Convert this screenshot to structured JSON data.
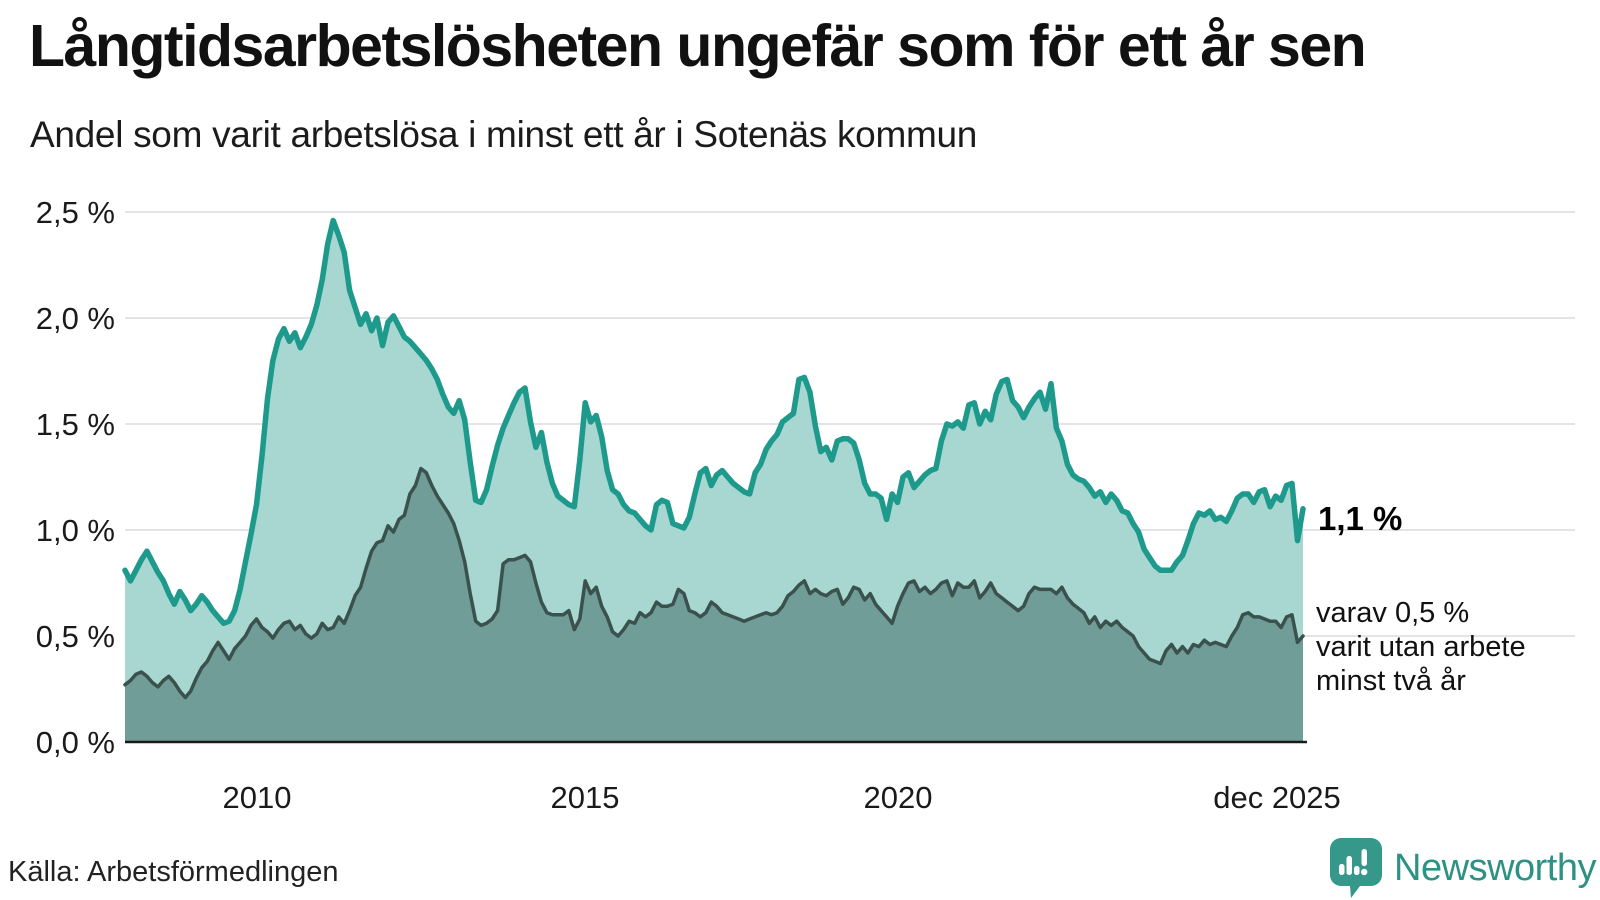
{
  "header": {
    "title": "Långtidsarbetslösheten ungefär som för ett år sen",
    "subtitle": "Andel som varit arbetslösa i minst ett år i Sotenäs kommun"
  },
  "chart_data": {
    "type": "area",
    "x_start": "2008-01",
    "x_end": "2025-12",
    "x_tick_labels": [
      "2010",
      "2015",
      "2020",
      "dec 2025"
    ],
    "y_tick_labels": [
      "2,5 %",
      "2,0 %",
      "1,5 %",
      "1,0 %",
      "0,5 %",
      "0,0 %"
    ],
    "ylim": [
      0,
      2.5
    ],
    "grid": "on",
    "legend_position": "none",
    "colors": {
      "grid": "#e4e4e8",
      "axis": "#1a1a1a"
    },
    "series": [
      {
        "name": "arbetslösa minst ett år",
        "line_color": "#1e9a8c",
        "fill_color": "#a7d7d0",
        "latest_value": "1,1 %",
        "values": [
          0.81,
          0.76,
          0.81,
          0.86,
          0.9,
          0.85,
          0.8,
          0.76,
          0.7,
          0.65,
          0.71,
          0.67,
          0.62,
          0.65,
          0.69,
          0.66,
          0.62,
          0.59,
          0.56,
          0.57,
          0.62,
          0.72,
          0.85,
          0.98,
          1.12,
          1.35,
          1.62,
          1.8,
          1.9,
          1.95,
          1.89,
          1.93,
          1.86,
          1.91,
          1.97,
          2.06,
          2.18,
          2.35,
          2.46,
          2.39,
          2.31,
          2.13,
          2.05,
          1.97,
          2.02,
          1.94,
          2.0,
          1.87,
          1.98,
          2.01,
          1.96,
          1.91,
          1.89,
          1.86,
          1.83,
          1.8,
          1.76,
          1.71,
          1.64,
          1.58,
          1.55,
          1.61,
          1.52,
          1.32,
          1.14,
          1.13,
          1.19,
          1.3,
          1.4,
          1.48,
          1.54,
          1.6,
          1.65,
          1.67,
          1.51,
          1.39,
          1.46,
          1.32,
          1.22,
          1.16,
          1.14,
          1.12,
          1.11,
          1.33,
          1.6,
          1.51,
          1.54,
          1.44,
          1.28,
          1.19,
          1.17,
          1.12,
          1.09,
          1.08,
          1.05,
          1.02,
          1.0,
          1.12,
          1.14,
          1.13,
          1.03,
          1.02,
          1.01,
          1.06,
          1.17,
          1.27,
          1.29,
          1.21,
          1.26,
          1.28,
          1.25,
          1.22,
          1.2,
          1.18,
          1.17,
          1.27,
          1.31,
          1.38,
          1.42,
          1.45,
          1.51,
          1.53,
          1.55,
          1.71,
          1.72,
          1.65,
          1.49,
          1.37,
          1.39,
          1.33,
          1.42,
          1.43,
          1.43,
          1.41,
          1.33,
          1.22,
          1.17,
          1.17,
          1.15,
          1.05,
          1.17,
          1.13,
          1.25,
          1.27,
          1.2,
          1.23,
          1.26,
          1.28,
          1.29,
          1.42,
          1.5,
          1.49,
          1.51,
          1.48,
          1.59,
          1.6,
          1.5,
          1.56,
          1.52,
          1.64,
          1.7,
          1.71,
          1.61,
          1.58,
          1.53,
          1.58,
          1.62,
          1.65,
          1.57,
          1.69,
          1.48,
          1.42,
          1.31,
          1.26,
          1.24,
          1.23,
          1.2,
          1.16,
          1.18,
          1.13,
          1.17,
          1.14,
          1.09,
          1.08,
          1.03,
          0.99,
          0.91,
          0.87,
          0.83,
          0.81,
          0.81,
          0.81,
          0.85,
          0.88,
          0.95,
          1.03,
          1.08,
          1.07,
          1.09,
          1.05,
          1.06,
          1.04,
          1.09,
          1.15,
          1.17,
          1.17,
          1.13,
          1.18,
          1.19,
          1.11,
          1.16,
          1.14,
          1.21,
          1.22,
          0.95,
          1.1
        ]
      },
      {
        "name": "varav utan arbete minst två år",
        "line_color": "#3a514d",
        "fill_color": "#709d97",
        "latest_value": "0,5 %",
        "values": [
          0.27,
          0.29,
          0.32,
          0.33,
          0.31,
          0.28,
          0.26,
          0.29,
          0.31,
          0.28,
          0.24,
          0.21,
          0.24,
          0.3,
          0.35,
          0.38,
          0.43,
          0.47,
          0.43,
          0.39,
          0.44,
          0.47,
          0.5,
          0.55,
          0.58,
          0.54,
          0.52,
          0.49,
          0.53,
          0.56,
          0.57,
          0.53,
          0.55,
          0.51,
          0.49,
          0.51,
          0.56,
          0.53,
          0.54,
          0.59,
          0.56,
          0.62,
          0.69,
          0.73,
          0.82,
          0.9,
          0.94,
          0.95,
          1.02,
          0.99,
          1.05,
          1.07,
          1.17,
          1.21,
          1.29,
          1.27,
          1.21,
          1.16,
          1.12,
          1.08,
          1.03,
          0.95,
          0.85,
          0.7,
          0.57,
          0.55,
          0.56,
          0.58,
          0.62,
          0.84,
          0.86,
          0.86,
          0.87,
          0.88,
          0.85,
          0.75,
          0.66,
          0.61,
          0.6,
          0.6,
          0.6,
          0.62,
          0.53,
          0.58,
          0.76,
          0.7,
          0.73,
          0.64,
          0.59,
          0.52,
          0.5,
          0.53,
          0.57,
          0.56,
          0.61,
          0.59,
          0.61,
          0.66,
          0.64,
          0.64,
          0.65,
          0.72,
          0.7,
          0.62,
          0.61,
          0.59,
          0.61,
          0.66,
          0.64,
          0.61,
          0.6,
          0.59,
          0.58,
          0.57,
          0.58,
          0.59,
          0.6,
          0.61,
          0.6,
          0.61,
          0.64,
          0.69,
          0.71,
          0.74,
          0.76,
          0.7,
          0.72,
          0.7,
          0.69,
          0.71,
          0.72,
          0.65,
          0.68,
          0.73,
          0.72,
          0.67,
          0.7,
          0.65,
          0.62,
          0.59,
          0.56,
          0.64,
          0.7,
          0.75,
          0.76,
          0.71,
          0.73,
          0.7,
          0.72,
          0.75,
          0.76,
          0.69,
          0.75,
          0.73,
          0.73,
          0.76,
          0.68,
          0.71,
          0.75,
          0.7,
          0.68,
          0.66,
          0.64,
          0.62,
          0.64,
          0.7,
          0.73,
          0.72,
          0.72,
          0.72,
          0.7,
          0.73,
          0.68,
          0.65,
          0.63,
          0.61,
          0.56,
          0.59,
          0.54,
          0.57,
          0.55,
          0.57,
          0.54,
          0.52,
          0.5,
          0.45,
          0.42,
          0.39,
          0.38,
          0.37,
          0.43,
          0.46,
          0.42,
          0.45,
          0.42,
          0.46,
          0.45,
          0.48,
          0.46,
          0.47,
          0.46,
          0.45,
          0.5,
          0.54,
          0.6,
          0.61,
          0.59,
          0.59,
          0.58,
          0.57,
          0.57,
          0.54,
          0.59,
          0.6,
          0.47,
          0.5
        ]
      }
    ],
    "annotations": {
      "latest_primary": "1,1 %",
      "secondary_line1": "varav 0,5 %",
      "secondary_line2": "varit utan arbete",
      "secondary_line3": "minst två år"
    }
  },
  "footer": {
    "source": "Källa: Arbetsförmedlingen",
    "brand": "Newsworthy",
    "brand_color": "#35988b",
    "brand_text_color": "#2d9184"
  }
}
